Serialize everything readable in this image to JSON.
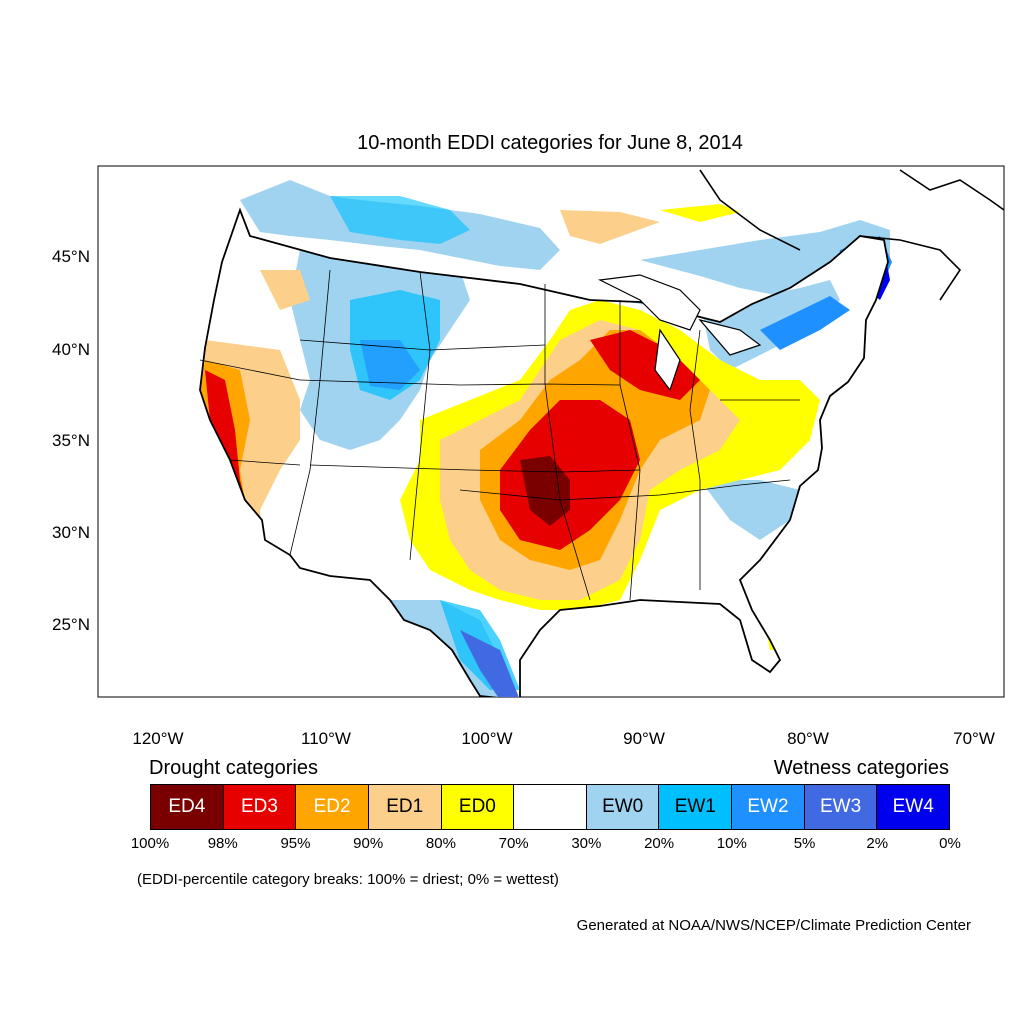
{
  "title": "10-month EDDI categories for June 8, 2014",
  "lat_labels": [
    "45°N",
    "40°N",
    "35°N",
    "30°N",
    "25°N"
  ],
  "lon_labels": [
    "120°W",
    "110°W",
    "100°W",
    "90°W",
    "80°W",
    "70°W"
  ],
  "legend": {
    "drought_heading": "Drought categories",
    "wetness_heading": "Wetness categories",
    "categories": [
      {
        "label": "ED4",
        "color": "#7a0000",
        "text_color": "#ffffff"
      },
      {
        "label": "ED3",
        "color": "#e60000",
        "text_color": "#ffffff"
      },
      {
        "label": "ED2",
        "color": "#ffa500",
        "text_color": "#ffffff"
      },
      {
        "label": "ED1",
        "color": "#fcd08a",
        "text_color": "#000000"
      },
      {
        "label": "ED0",
        "color": "#ffff00",
        "text_color": "#000000"
      },
      {
        "label": "",
        "color": "#ffffff",
        "text_color": "#000000"
      },
      {
        "label": "EW0",
        "color": "#9fd3f0",
        "text_color": "#000000"
      },
      {
        "label": "EW1",
        "color": "#00bfff",
        "text_color": "#000000"
      },
      {
        "label": "EW2",
        "color": "#1e90ff",
        "text_color": "#ffffff"
      },
      {
        "label": "EW3",
        "color": "#4169e1",
        "text_color": "#ffffff"
      },
      {
        "label": "EW4",
        "color": "#0000ee",
        "text_color": "#ffffff"
      }
    ],
    "breaks": [
      "100%",
      "98%",
      "95%",
      "90%",
      "80%",
      "70%",
      "30%",
      "20%",
      "10%",
      "5%",
      "2%",
      "0%"
    ]
  },
  "note": "(EDDI-percentile category breaks: 100% = driest; 0% = wettest)",
  "credit": "Generated at NOAA/NWS/NCEP/Climate Prediction Center"
}
